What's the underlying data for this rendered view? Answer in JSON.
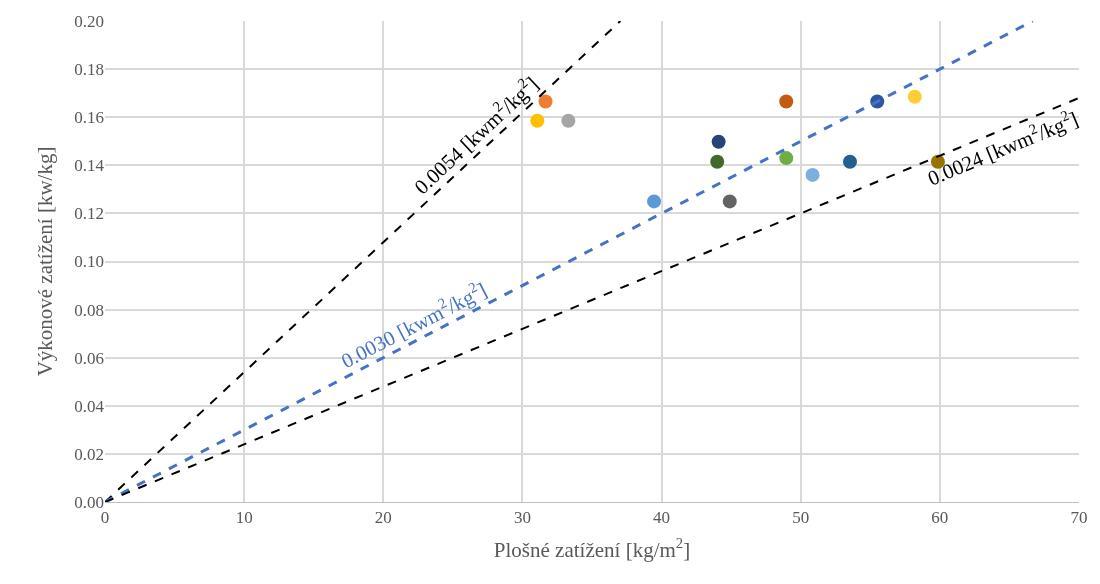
{
  "chart_data": {
    "type": "scatter",
    "xlabel": "Plošné zatížení [kg/m$^{2}$]",
    "ylabel": "Výkonové zatížení [kw/kg]",
    "xlim": [
      0,
      70
    ],
    "xticks": [
      0,
      10,
      20,
      30,
      40,
      50,
      60,
      70
    ],
    "ylim": [
      0,
      0.2
    ],
    "yticks": [
      {
        "value": 0,
        "label": "0.00"
      },
      {
        "value": 0.02,
        "label": "0.02"
      },
      {
        "value": 0.04,
        "label": "0.04"
      },
      {
        "value": 0.06,
        "label": "0.06"
      },
      {
        "value": 0.08,
        "label": "0.08"
      },
      {
        "value": 0.1,
        "label": "0.10"
      },
      {
        "value": 0.12,
        "label": "0.12"
      },
      {
        "value": 0.14,
        "label": "0.14"
      },
      {
        "value": 0.16,
        "label": "0.16"
      },
      {
        "value": 0.18,
        "label": "0.18"
      },
      {
        "value": 0.2,
        "label": "0.20"
      }
    ],
    "grid": true,
    "legend": false,
    "series": [
      {
        "marker": "circle",
        "x": [
          31.66,
          31.07,
          33.3,
          39.46,
          44.1,
          44.0,
          44.9,
          48.96,
          48.96,
          50.85,
          53.54,
          55.5,
          58.2,
          59.86
        ],
        "values": [
          0.1665,
          0.1585,
          0.1585,
          0.125,
          0.1498,
          0.1415,
          0.125,
          0.1665,
          0.143,
          0.136,
          0.1415,
          0.1665,
          0.1685,
          0.1415
        ],
        "colors": [
          "#ed7d31",
          "#ffc000",
          "#a5a5a5",
          "#5b9bd5",
          "#264478",
          "#43682b",
          "#636363",
          "#c55a11",
          "#70ad47",
          "#7cafdd",
          "#255e91",
          "#2f55a0",
          "#ffcd33",
          "#997300"
        ]
      },
      {
        "type": "line",
        "name": "0.0054 [kwm$^{2}$/kg$^{2}$]",
        "color": "#000000",
        "line_style": "dashed",
        "marker": "none",
        "x": [
          0,
          37.04
        ],
        "values": [
          0,
          0.2
        ]
      },
      {
        "type": "line",
        "name": "0.0030 [kwm$^{2}$/kg$^{2}$]",
        "color": "#4472c4",
        "line_style": "dashed",
        "marker": "none",
        "x": [
          0,
          66.67
        ],
        "values": [
          0,
          0.2
        ]
      },
      {
        "type": "line",
        "name": "0.0024 [kwm$^{2}$/kg$^{2}$]",
        "color": "#000000",
        "line_style": "dashed",
        "marker": "none",
        "x": [
          0,
          70
        ],
        "values": [
          0,
          0.168
        ]
      }
    ]
  }
}
